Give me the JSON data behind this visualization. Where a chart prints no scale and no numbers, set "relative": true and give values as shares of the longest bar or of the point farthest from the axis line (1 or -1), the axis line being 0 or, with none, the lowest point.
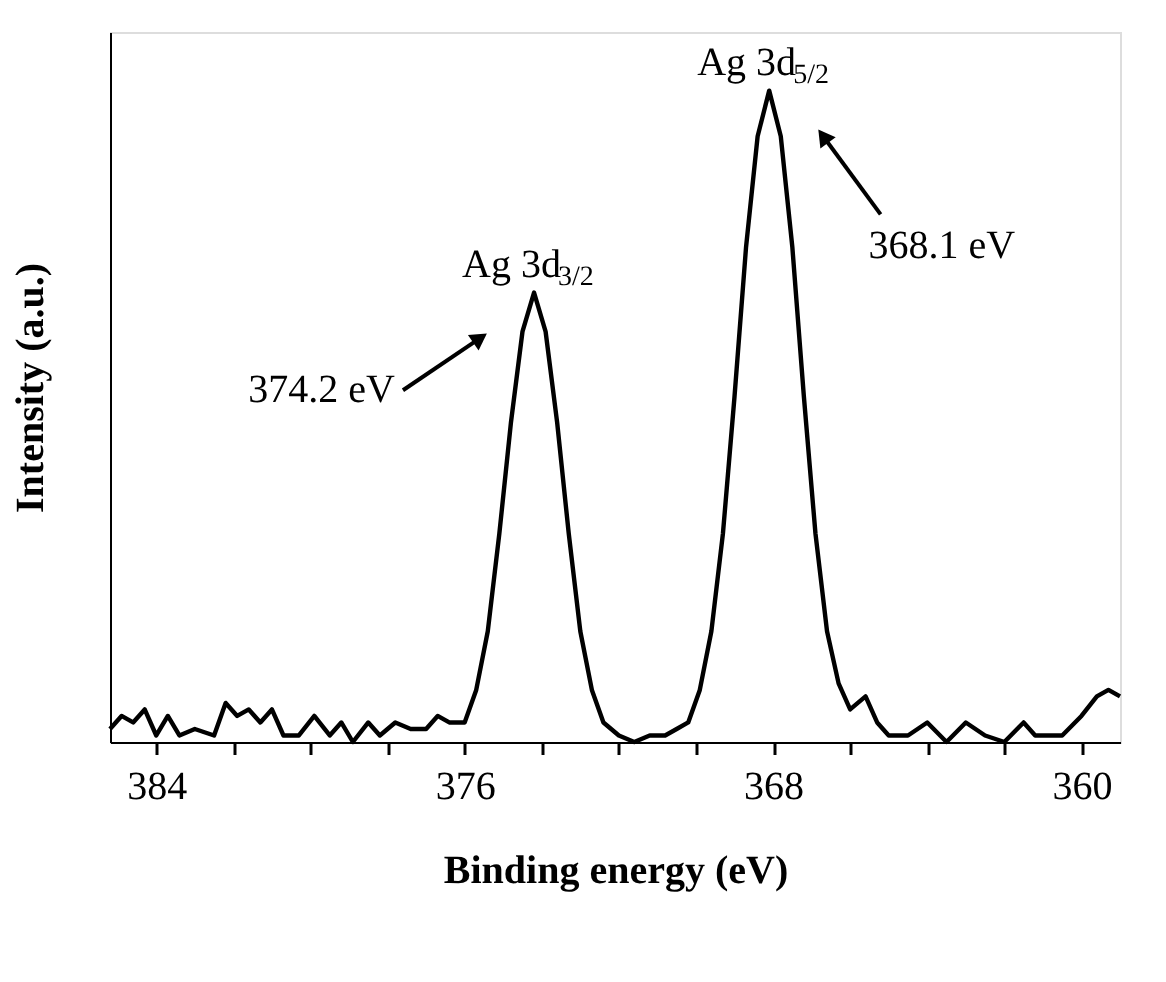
{
  "chart_data": {
    "type": "line",
    "relative": true,
    "xlabel": "Binding energy (eV)",
    "ylabel": "Intensity (a.u.)",
    "xlim": [
      385.2,
      359.0
    ],
    "xticks": [
      384,
      {
        "value": 382,
        "label": null
      },
      {
        "value": 380,
        "label": null
      },
      {
        "value": 378,
        "label": null
      },
      376,
      {
        "value": 374,
        "label": null
      },
      {
        "value": 372,
        "label": null
      },
      {
        "value": 370,
        "label": null
      },
      368,
      {
        "value": 366,
        "label": null
      },
      {
        "value": 364,
        "label": null
      },
      {
        "value": 362,
        "label": null
      },
      360
    ],
    "grid": false,
    "legend": false,
    "marker": "none",
    "line_style": "solid",
    "x": [
      385.2,
      384.9,
      384.6,
      384.3,
      384.0,
      383.7,
      383.4,
      383.0,
      382.5,
      382.2,
      381.9,
      381.6,
      381.3,
      381.0,
      380.7,
      380.3,
      379.9,
      379.5,
      379.2,
      378.9,
      378.5,
      378.2,
      377.8,
      377.4,
      377.0,
      376.7,
      376.4,
      376.0,
      375.7,
      375.4,
      375.1,
      374.8,
      374.5,
      374.2,
      373.9,
      373.6,
      373.3,
      373.0,
      372.7,
      372.4,
      372.0,
      371.6,
      371.2,
      370.8,
      370.5,
      370.2,
      369.9,
      369.6,
      369.3,
      369.0,
      368.7,
      368.4,
      368.1,
      367.8,
      367.5,
      367.2,
      366.9,
      366.6,
      366.3,
      366.0,
      365.6,
      365.3,
      365.0,
      364.5,
      364.0,
      363.5,
      363.0,
      362.5,
      362.0,
      361.5,
      361.2,
      360.5,
      360.0,
      359.6,
      359.3,
      359.0
    ],
    "series": [
      {
        "color": "#000000",
        "values": [
          0.02,
          0.04,
          0.03,
          0.05,
          0.01,
          0.04,
          0.01,
          0.02,
          0.01,
          0.06,
          0.04,
          0.05,
          0.03,
          0.05,
          0.01,
          0.01,
          0.04,
          0.01,
          0.03,
          0.0,
          0.03,
          0.01,
          0.03,
          0.02,
          0.02,
          0.04,
          0.03,
          0.03,
          0.08,
          0.17,
          0.32,
          0.49,
          0.63,
          0.69,
          0.63,
          0.49,
          0.32,
          0.17,
          0.08,
          0.03,
          0.01,
          0.0,
          0.01,
          0.01,
          0.02,
          0.03,
          0.08,
          0.17,
          0.32,
          0.53,
          0.76,
          0.93,
          1.0,
          0.93,
          0.76,
          0.53,
          0.32,
          0.17,
          0.09,
          0.05,
          0.07,
          0.03,
          0.01,
          0.01,
          0.03,
          0.0,
          0.03,
          0.01,
          0.0,
          0.03,
          0.01,
          0.01,
          0.04,
          0.07,
          0.08,
          0.07
        ]
      }
    ],
    "annotations": [
      {
        "text": "Ag 3d$_{3/2}$",
        "x": 374.2,
        "y": 0.69
      },
      "374.2 eV",
      {
        "text": "Ag 3d$_{5/2}$",
        "x": 368.1,
        "y": 1.0
      },
      "368.1 eV"
    ]
  }
}
